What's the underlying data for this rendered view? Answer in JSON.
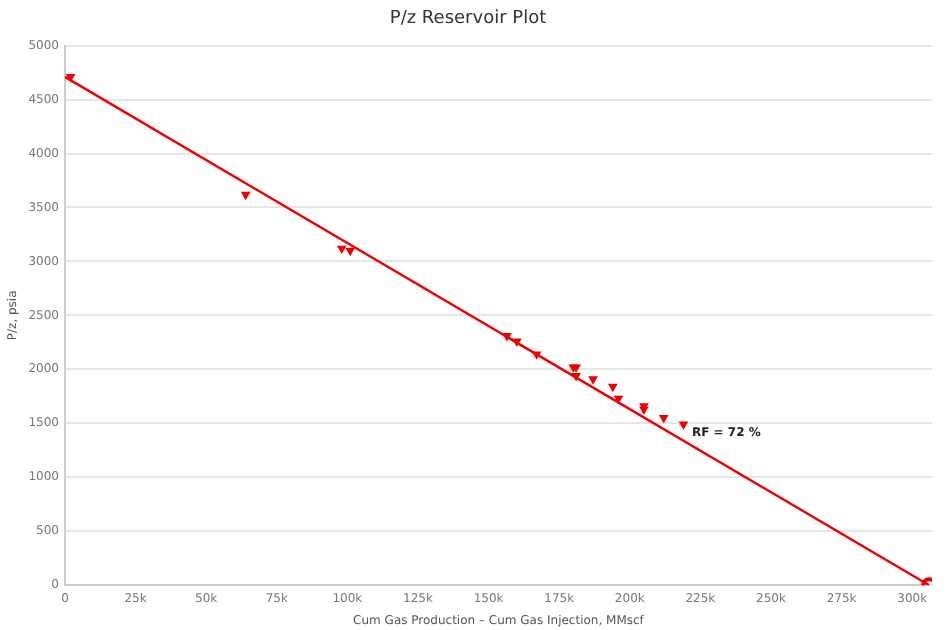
{
  "chart_data": {
    "type": "scatter",
    "title": "P/z Reservoir Plot",
    "xlabel": "Cum Gas Production – Cum Gas Injection, MMscf",
    "ylabel": "P/z, psia",
    "xlim": [
      0,
      307000
    ],
    "xticks": [
      0,
      {
        "value": 25000,
        "label": "25k"
      },
      {
        "value": 50000,
        "label": "50k"
      },
      {
        "value": 75000,
        "label": "75k"
      },
      {
        "value": 100000,
        "label": "100k"
      },
      {
        "value": 125000,
        "label": "125k"
      },
      {
        "value": 150000,
        "label": "150k"
      },
      {
        "value": 175000,
        "label": "175k"
      },
      {
        "value": 200000,
        "label": "200k"
      },
      {
        "value": 225000,
        "label": "225k"
      },
      {
        "value": 250000,
        "label": "250k"
      },
      {
        "value": 275000,
        "label": "275k"
      },
      {
        "value": 300000,
        "label": "300k"
      }
    ],
    "ylim": [
      0,
      5000
    ],
    "yticks": [
      0,
      500,
      1000,
      1500,
      2000,
      2500,
      3000,
      3500,
      4000,
      4500,
      5000
    ],
    "grid": "y",
    "legend": false,
    "series": [
      {
        "type": "scatter",
        "color": "#ee0000",
        "marker": "triangle",
        "x": [
          2000,
          64000,
          98000,
          101000,
          156500,
          160000,
          167000,
          180000,
          181000,
          181000,
          187000,
          194000,
          196000,
          205000,
          205000,
          212000,
          219000
        ],
        "values": [
          4710,
          3620,
          3120,
          3100,
          2310,
          2260,
          2140,
          2020,
          2020,
          1940,
          1910,
          1840,
          1730,
          1660,
          1630,
          1550,
          1490
        ]
      },
      {
        "type": "line",
        "color": "#ee0000",
        "marker": "none",
        "x": [
          0,
          306000
        ],
        "values": [
          4710,
          0
        ]
      },
      {
        "type": "scatter",
        "color": "#ee0000",
        "marker": "circle",
        "x": [
          306000
        ],
        "values": [
          0
        ]
      }
    ],
    "annotations": [
      {
        "text": "RF = 72 %",
        "x": 222000,
        "y": 1410
      }
    ]
  }
}
